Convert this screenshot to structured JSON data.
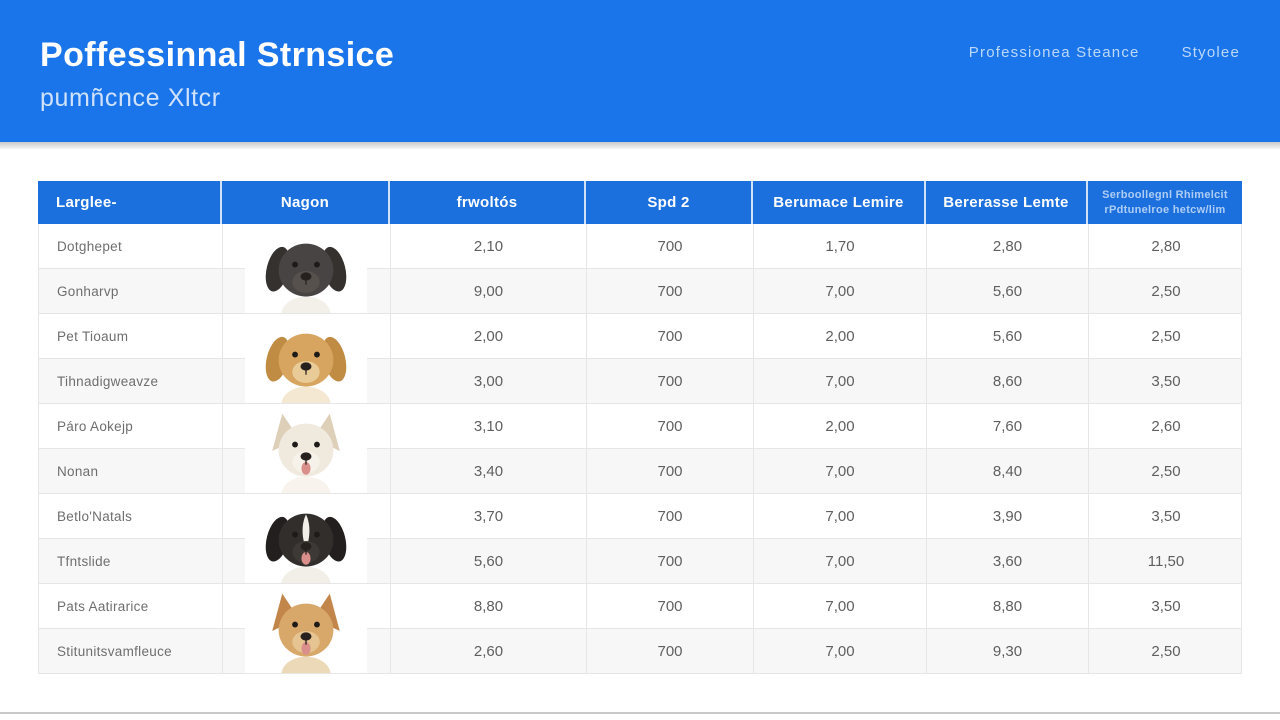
{
  "header": {
    "title": "Poffessinnal Strnsice",
    "subtitle": "pumñcnce Xltcr",
    "nav": [
      {
        "label": "Professionea Steance"
      },
      {
        "label": "Styolee"
      }
    ]
  },
  "colors": {
    "banner_blue": "#1b75ea",
    "table_header_blue": "#1c70dd",
    "header_text": "#ffffff",
    "last_header_text": "#aecdf6",
    "row_line": "#e6e6e6",
    "value_text": "#5f5f5f",
    "label_text": "#6e6e6e",
    "bottom_line": "#c8c8c8"
  },
  "table": {
    "columns": [
      {
        "label": "Larglee-"
      },
      {
        "label": "Nagon"
      },
      {
        "label": "frwoltós"
      },
      {
        "label": "Spd 2"
      },
      {
        "label": "Berumace Lemire"
      },
      {
        "label": "Bererasse Lemte"
      },
      {
        "label": "Serboollegnl Rhimelcit",
        "label2": "rPdtunelroe hetcw/lim"
      }
    ],
    "rows": [
      {
        "label": "Dotghepet",
        "c2": "2,10",
        "c3": "700",
        "c4": "1,70",
        "c5": "2,80",
        "c6": "2,80"
      },
      {
        "label": "Gonharvp",
        "c2": "9,00",
        "c3": "700",
        "c4": "7,00",
        "c5": "5,60",
        "c6": "2,50"
      },
      {
        "label": "Pet Tioaum",
        "c2": "2,00",
        "c3": "700",
        "c4": "2,00",
        "c5": "5,60",
        "c6": "2,50"
      },
      {
        "label": "Tihnadigweavze",
        "c2": "3,00",
        "c3": "700",
        "c4": "7,00",
        "c5": "8,60",
        "c6": "3,50"
      },
      {
        "label": "Páro Aokejp",
        "c2": "3,10",
        "c3": "700",
        "c4": "2,00",
        "c5": "7,60",
        "c6": "2,60"
      },
      {
        "label": "Nonan",
        "c2": "3,40",
        "c3": "700",
        "c4": "7,00",
        "c5": "8,40",
        "c6": "2,50"
      },
      {
        "label": "Betlo'Natals",
        "c2": "3,70",
        "c3": "700",
        "c4": "7,00",
        "c5": "3,90",
        "c6": "3,50"
      },
      {
        "label": "Tfntslide",
        "c2": "5,60",
        "c3": "700",
        "c4": "7,00",
        "c5": "3,60",
        "c6": "11,50"
      },
      {
        "label": "Pats Aatirarice",
        "c2": "8,80",
        "c3": "700",
        "c4": "7,00",
        "c5": "8,80",
        "c6": "3,50"
      },
      {
        "label": "Stitunitsvamfleuce",
        "c2": "2,60",
        "c3": "700",
        "c4": "7,00",
        "c5": "9,30",
        "c6": "2,50"
      }
    ],
    "dogs": [
      {
        "id": "dark-gray-dog",
        "ears": "floppy",
        "blaze": false,
        "tongue": false,
        "coat": "#474443",
        "earColor": "#34312e",
        "muzzle": "#56514c",
        "chest": "#f3efe9"
      },
      {
        "id": "golden-retriever",
        "ears": "floppy",
        "blaze": false,
        "tongue": false,
        "coat": "#d7a560",
        "earColor": "#c08c44",
        "muzzle": "#e9cb97",
        "chest": "#f4e8d2"
      },
      {
        "id": "white-dog",
        "ears": "pointy",
        "blaze": false,
        "tongue": true,
        "coat": "#f0e9dd",
        "earColor": "#ddcfb8",
        "muzzle": "#f7f2e9",
        "chest": "#f8f4ed"
      },
      {
        "id": "border-collie",
        "ears": "floppy",
        "blaze": true,
        "tongue": true,
        "coat": "#312e2b",
        "earColor": "#221f1e",
        "muzzle": "#3d3935",
        "chest": "#f2efe9"
      },
      {
        "id": "tan-shepherd",
        "ears": "pointy",
        "blaze": false,
        "tongue": true,
        "coat": "#d8a76a",
        "earColor": "#c2854a",
        "muzzle": "#e5c492",
        "chest": "#ecd9b8"
      }
    ]
  }
}
